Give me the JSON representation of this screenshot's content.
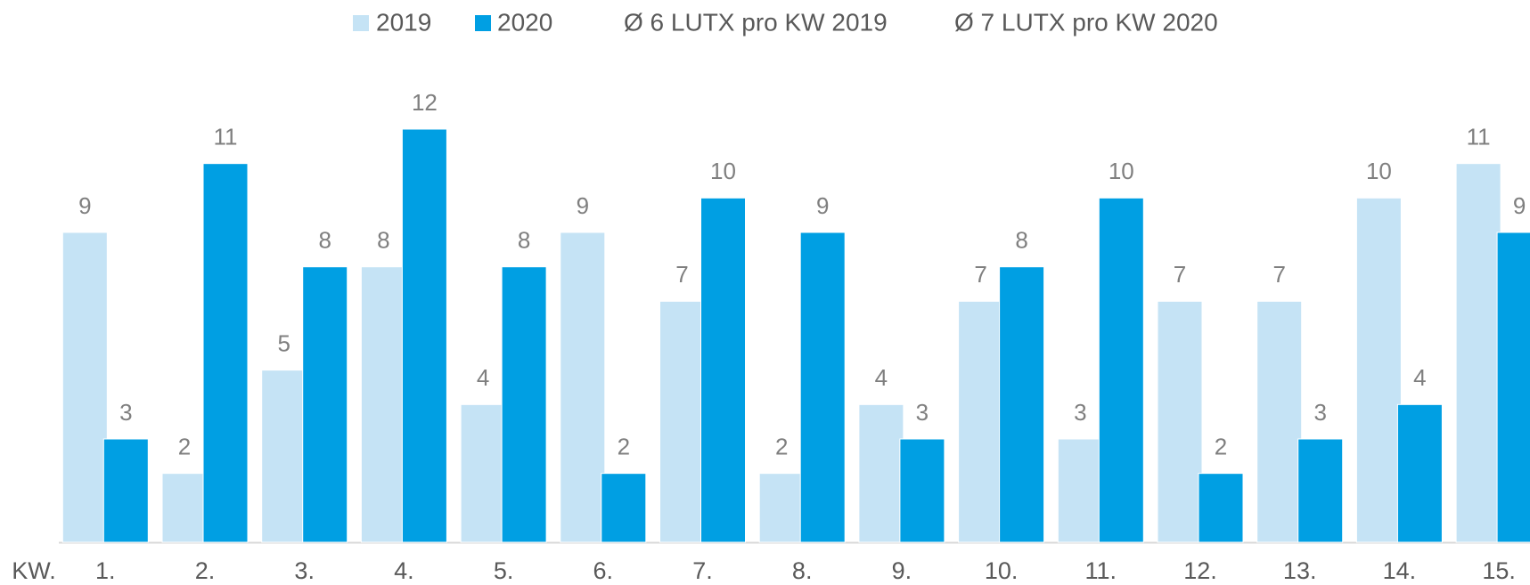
{
  "chart_data": {
    "type": "bar",
    "x_label": "KW.",
    "categories": [
      "1.",
      "2.",
      "3.",
      "4.",
      "5.",
      "6.",
      "7.",
      "8.",
      "9.",
      "10.",
      "11.",
      "12.",
      "13.",
      "14.",
      "15."
    ],
    "series": [
      {
        "name": "2019",
        "color": "#c5e3f5",
        "values": [
          9,
          2,
          5,
          8,
          4,
          9,
          7,
          2,
          4,
          7,
          3,
          7,
          7,
          10,
          11
        ]
      },
      {
        "name": "2020",
        "color": "#009fe3",
        "values": [
          3,
          11,
          8,
          12,
          8,
          2,
          10,
          9,
          3,
          8,
          10,
          2,
          3,
          4,
          9
        ]
      }
    ],
    "legend_extra": [
      "Ø 6 LUTX pro KW 2019",
      "Ø 7 LUTX pro KW 2020"
    ],
    "ylim": [
      0,
      12
    ],
    "legend": "top"
  }
}
